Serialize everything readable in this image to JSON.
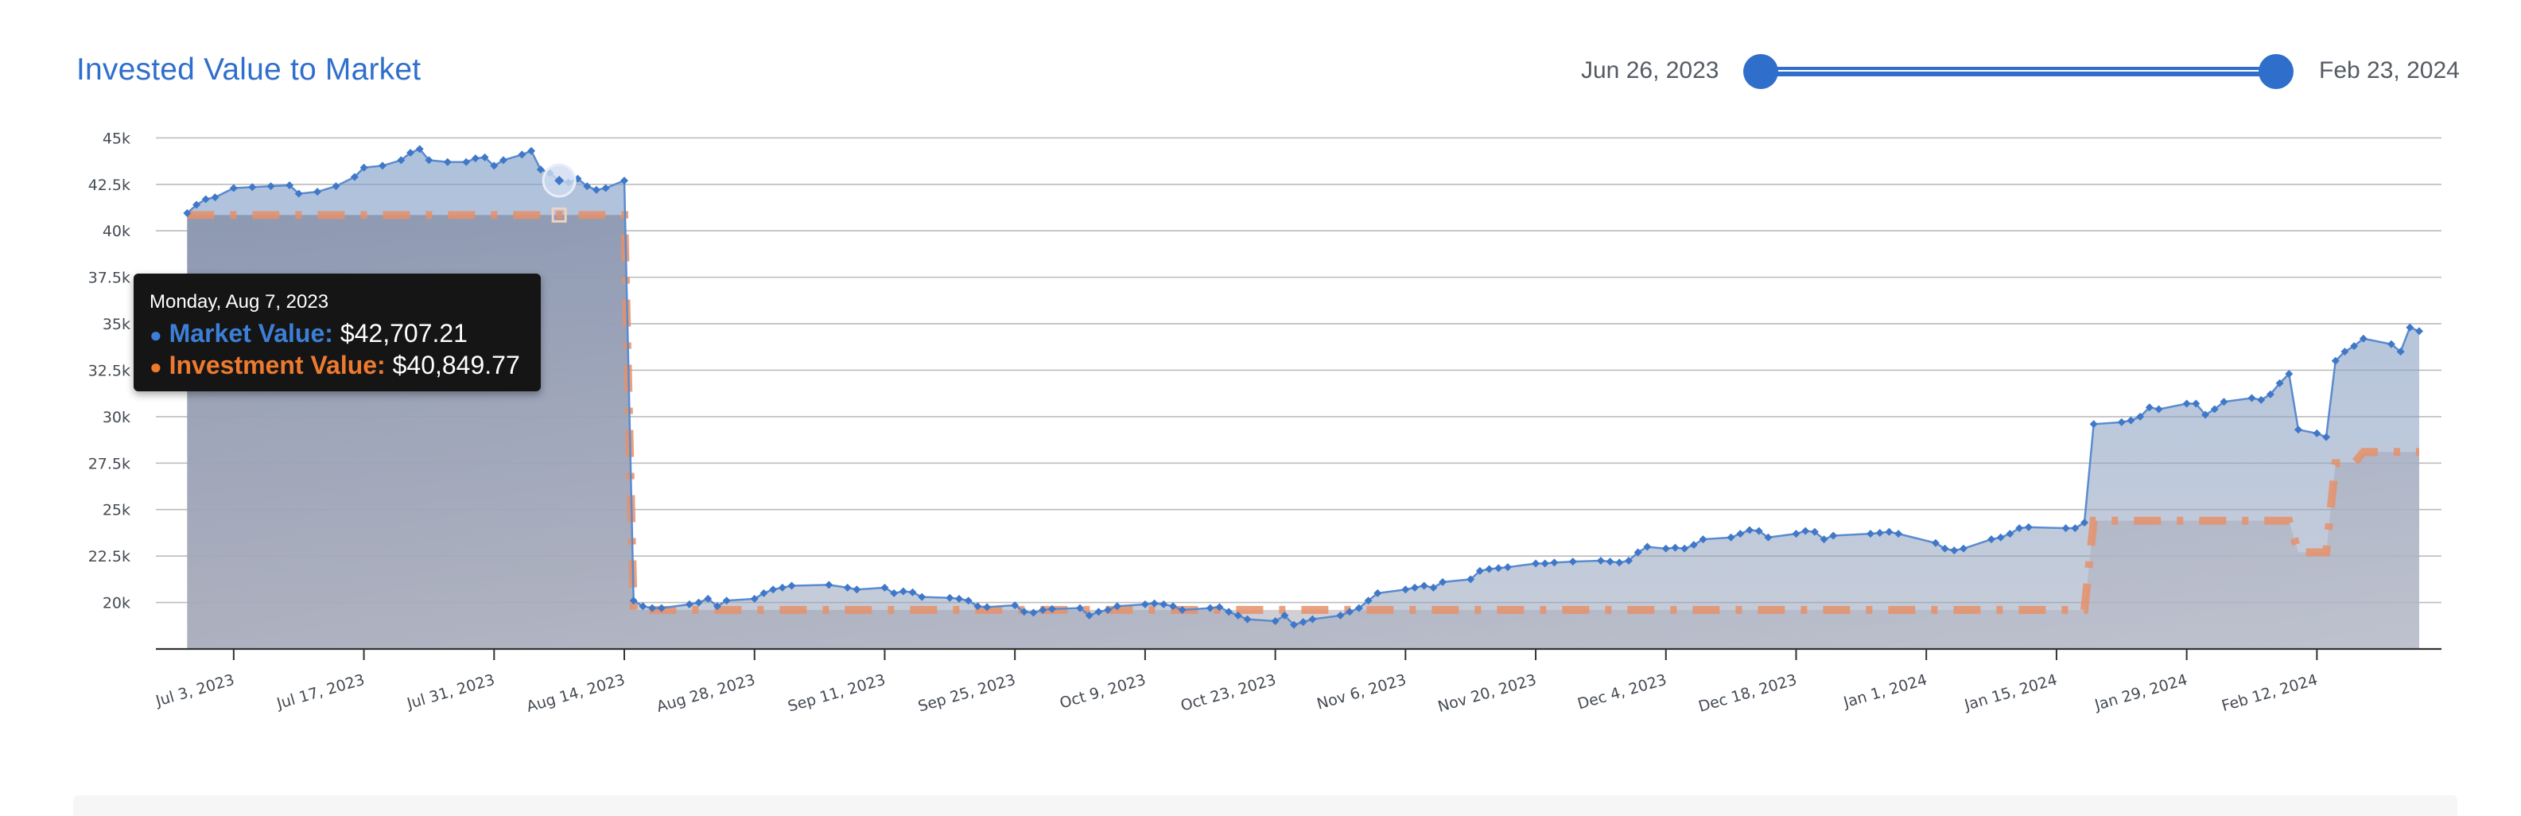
{
  "header": {
    "title": "Invested Value to Market",
    "range_start": "Jun 26, 2023",
    "range_end": "Feb 23, 2024"
  },
  "colors": {
    "accent": "#2f6fcb",
    "market_line": "#5a8bd0",
    "investment_line": "#e5906a",
    "grid": "#bcbcbc"
  },
  "tooltip": {
    "date": "Monday, Aug 7, 2023",
    "market_key": "Market Value:",
    "market_value": "$42,707.21",
    "investment_key": "Investment Value:",
    "investment_value": "$40,849.77"
  },
  "chart_data": {
    "type": "area",
    "x_range": [
      "2023-06-26",
      "2024-02-23"
    ],
    "ylim": [
      17500,
      46000
    ],
    "y_ticks": [
      20000,
      22500,
      25000,
      27500,
      30000,
      32500,
      35000,
      37500,
      40000,
      42500,
      45000
    ],
    "y_tick_labels": [
      "20k",
      "22.5k",
      "25k",
      "27.5k",
      "30k",
      "32.5k",
      "35k",
      "37.5k",
      "40k",
      "42.5k",
      "45k"
    ],
    "x_ticks": [
      "2023-07-03",
      "2023-07-17",
      "2023-07-31",
      "2023-08-14",
      "2023-08-28",
      "2023-09-11",
      "2023-09-25",
      "2023-10-09",
      "2023-10-23",
      "2023-11-06",
      "2023-11-20",
      "2023-12-04",
      "2023-12-18",
      "2024-01-01",
      "2024-01-15",
      "2024-01-29",
      "2024-02-12"
    ],
    "x_tick_labels": [
      "Jul 3, 2023",
      "Jul 17, 2023",
      "Jul 31, 2023",
      "Aug 14, 2023",
      "Aug 28, 2023",
      "Sep 11, 2023",
      "Sep 25, 2023",
      "Oct 9, 2023",
      "Oct 23, 2023",
      "Nov 6, 2023",
      "Nov 20, 2023",
      "Dec 4, 2023",
      "Dec 18, 2023",
      "Jan 1, 2024",
      "Jan 15, 2024",
      "Jan 29, 2024",
      "Feb 12, 2024"
    ],
    "grid": true,
    "highlight_date": "2023-08-07",
    "series": [
      {
        "name": "Market Value",
        "points": [
          [
            "2023-06-28",
            40950
          ],
          [
            "2023-06-29",
            41400
          ],
          [
            "2023-06-30",
            41700
          ],
          [
            "2023-07-01",
            41800
          ],
          [
            "2023-07-03",
            42300
          ],
          [
            "2023-07-05",
            42350
          ],
          [
            "2023-07-07",
            42400
          ],
          [
            "2023-07-09",
            42450
          ],
          [
            "2023-07-10",
            42000
          ],
          [
            "2023-07-12",
            42100
          ],
          [
            "2023-07-14",
            42400
          ],
          [
            "2023-07-16",
            42900
          ],
          [
            "2023-07-17",
            43400
          ],
          [
            "2023-07-19",
            43500
          ],
          [
            "2023-07-21",
            43800
          ],
          [
            "2023-07-22",
            44200
          ],
          [
            "2023-07-23",
            44400
          ],
          [
            "2023-07-24",
            43800
          ],
          [
            "2023-07-26",
            43700
          ],
          [
            "2023-07-28",
            43700
          ],
          [
            "2023-07-29",
            43900
          ],
          [
            "2023-07-30",
            43950
          ],
          [
            "2023-07-31",
            43500
          ],
          [
            "2023-08-01",
            43800
          ],
          [
            "2023-08-03",
            44100
          ],
          [
            "2023-08-04",
            44300
          ],
          [
            "2023-08-05",
            43300
          ],
          [
            "2023-08-06",
            43100
          ],
          [
            "2023-08-07",
            42707.21
          ],
          [
            "2023-08-08",
            42600
          ],
          [
            "2023-08-09",
            42800
          ],
          [
            "2023-08-10",
            42400
          ],
          [
            "2023-08-11",
            42200
          ],
          [
            "2023-08-12",
            42300
          ],
          [
            "2023-08-14",
            42700
          ],
          [
            "2023-08-15",
            20100
          ],
          [
            "2023-08-16",
            19800
          ],
          [
            "2023-08-17",
            19700
          ],
          [
            "2023-08-18",
            19700
          ],
          [
            "2023-08-21",
            19900
          ],
          [
            "2023-08-22",
            20000
          ],
          [
            "2023-08-23",
            20200
          ],
          [
            "2023-08-24",
            19800
          ],
          [
            "2023-08-25",
            20100
          ],
          [
            "2023-08-28",
            20200
          ],
          [
            "2023-08-29",
            20500
          ],
          [
            "2023-08-30",
            20700
          ],
          [
            "2023-08-31",
            20800
          ],
          [
            "2023-09-01",
            20900
          ],
          [
            "2023-09-05",
            20950
          ],
          [
            "2023-09-07",
            20800
          ],
          [
            "2023-09-08",
            20700
          ],
          [
            "2023-09-11",
            20800
          ],
          [
            "2023-09-12",
            20500
          ],
          [
            "2023-09-13",
            20600
          ],
          [
            "2023-09-14",
            20550
          ],
          [
            "2023-09-15",
            20300
          ],
          [
            "2023-09-18",
            20250
          ],
          [
            "2023-09-19",
            20200
          ],
          [
            "2023-09-20",
            20100
          ],
          [
            "2023-09-21",
            19800
          ],
          [
            "2023-09-22",
            19750
          ],
          [
            "2023-09-25",
            19850
          ],
          [
            "2023-09-26",
            19500
          ],
          [
            "2023-09-27",
            19450
          ],
          [
            "2023-09-28",
            19600
          ],
          [
            "2023-09-29",
            19650
          ],
          [
            "2023-10-02",
            19700
          ],
          [
            "2023-10-03",
            19300
          ],
          [
            "2023-10-04",
            19500
          ],
          [
            "2023-10-05",
            19600
          ],
          [
            "2023-10-06",
            19800
          ],
          [
            "2023-10-09",
            19900
          ],
          [
            "2023-10-10",
            19950
          ],
          [
            "2023-10-11",
            19900
          ],
          [
            "2023-10-12",
            19800
          ],
          [
            "2023-10-13",
            19600
          ],
          [
            "2023-10-16",
            19700
          ],
          [
            "2023-10-17",
            19750
          ],
          [
            "2023-10-18",
            19500
          ],
          [
            "2023-10-19",
            19300
          ],
          [
            "2023-10-20",
            19100
          ],
          [
            "2023-10-23",
            19000
          ],
          [
            "2023-10-24",
            19300
          ],
          [
            "2023-10-25",
            18800
          ],
          [
            "2023-10-26",
            18950
          ],
          [
            "2023-10-27",
            19100
          ],
          [
            "2023-10-30",
            19300
          ],
          [
            "2023-10-31",
            19500
          ],
          [
            "2023-11-01",
            19700
          ],
          [
            "2023-11-02",
            20100
          ],
          [
            "2023-11-03",
            20500
          ],
          [
            "2023-11-06",
            20700
          ],
          [
            "2023-11-07",
            20800
          ],
          [
            "2023-11-08",
            20900
          ],
          [
            "2023-11-09",
            20800
          ],
          [
            "2023-11-10",
            21100
          ],
          [
            "2023-11-13",
            21250
          ],
          [
            "2023-11-14",
            21700
          ],
          [
            "2023-11-15",
            21800
          ],
          [
            "2023-11-16",
            21850
          ],
          [
            "2023-11-17",
            21900
          ],
          [
            "2023-11-20",
            22100
          ],
          [
            "2023-11-21",
            22100
          ],
          [
            "2023-11-22",
            22150
          ],
          [
            "2023-11-24",
            22200
          ],
          [
            "2023-11-27",
            22250
          ],
          [
            "2023-11-28",
            22200
          ],
          [
            "2023-11-29",
            22150
          ],
          [
            "2023-11-30",
            22250
          ],
          [
            "2023-12-01",
            22700
          ],
          [
            "2023-12-02",
            23000
          ],
          [
            "2023-12-04",
            22900
          ],
          [
            "2023-12-05",
            22950
          ],
          [
            "2023-12-06",
            22900
          ],
          [
            "2023-12-07",
            23100
          ],
          [
            "2023-12-08",
            23400
          ],
          [
            "2023-12-11",
            23500
          ],
          [
            "2023-12-12",
            23700
          ],
          [
            "2023-12-13",
            23900
          ],
          [
            "2023-12-14",
            23850
          ],
          [
            "2023-12-15",
            23500
          ],
          [
            "2023-12-18",
            23700
          ],
          [
            "2023-12-19",
            23850
          ],
          [
            "2023-12-20",
            23800
          ],
          [
            "2023-12-21",
            23400
          ],
          [
            "2023-12-22",
            23600
          ],
          [
            "2023-12-26",
            23700
          ],
          [
            "2023-12-27",
            23750
          ],
          [
            "2023-12-28",
            23800
          ],
          [
            "2023-12-29",
            23700
          ],
          [
            "2024-01-02",
            23200
          ],
          [
            "2024-01-03",
            22900
          ],
          [
            "2024-01-04",
            22800
          ],
          [
            "2024-01-05",
            22900
          ],
          [
            "2024-01-08",
            23400
          ],
          [
            "2024-01-09",
            23500
          ],
          [
            "2024-01-10",
            23700
          ],
          [
            "2024-01-11",
            24000
          ],
          [
            "2024-01-12",
            24050
          ],
          [
            "2024-01-16",
            24000
          ],
          [
            "2024-01-17",
            24000
          ],
          [
            "2024-01-18",
            24300
          ],
          [
            "2024-01-19",
            29600
          ],
          [
            "2024-01-22",
            29700
          ],
          [
            "2024-01-23",
            29800
          ],
          [
            "2024-01-24",
            30000
          ],
          [
            "2024-01-25",
            30500
          ],
          [
            "2024-01-26",
            30400
          ],
          [
            "2024-01-29",
            30700
          ],
          [
            "2024-01-30",
            30700
          ],
          [
            "2024-01-31",
            30100
          ],
          [
            "2024-02-01",
            30400
          ],
          [
            "2024-02-02",
            30800
          ],
          [
            "2024-02-05",
            31000
          ],
          [
            "2024-02-06",
            30900
          ],
          [
            "2024-02-07",
            31200
          ],
          [
            "2024-02-08",
            31800
          ],
          [
            "2024-02-09",
            32300
          ],
          [
            "2024-02-10",
            29300
          ],
          [
            "2024-02-12",
            29100
          ],
          [
            "2024-02-13",
            28900
          ],
          [
            "2024-02-14",
            33000
          ],
          [
            "2024-02-15",
            33500
          ],
          [
            "2024-02-16",
            33800
          ],
          [
            "2024-02-17",
            34200
          ],
          [
            "2024-02-20",
            33900
          ],
          [
            "2024-02-21",
            33500
          ],
          [
            "2024-02-22",
            34800
          ],
          [
            "2024-02-23",
            34600
          ]
        ]
      },
      {
        "name": "Investment Value",
        "points": [
          [
            "2023-06-28",
            40849.77
          ],
          [
            "2023-08-14",
            40849.77
          ],
          [
            "2023-08-15",
            19600
          ],
          [
            "2023-11-01",
            19600
          ],
          [
            "2024-01-18",
            19600
          ],
          [
            "2024-01-19",
            24400
          ],
          [
            "2024-02-09",
            24400
          ],
          [
            "2024-02-10",
            22700
          ],
          [
            "2024-02-13",
            22700
          ],
          [
            "2024-02-14",
            27500
          ],
          [
            "2024-02-16",
            27500
          ],
          [
            "2024-02-17",
            28100
          ],
          [
            "2024-02-23",
            28100
          ]
        ]
      }
    ]
  }
}
